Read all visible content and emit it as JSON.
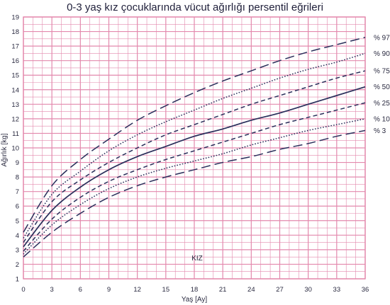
{
  "chart_data": {
    "type": "line",
    "title": "0-3 yaş kız çocuklarında vücut ağırlığı persentil eğrileri",
    "xlabel": "Yaş [Ay]",
    "ylabel": "Ağırlık [kg]",
    "annotation": "KIZ",
    "xlim": [
      0,
      36
    ],
    "ylim": [
      1,
      19
    ],
    "x_ticks": [
      "0",
      "3",
      "6",
      "9",
      "12",
      "15",
      "18",
      "21",
      "24",
      "27",
      "30",
      "33",
      "36"
    ],
    "y_ticks": [
      "1",
      "2",
      "3",
      "4",
      "5",
      "6",
      "7",
      "8",
      "9",
      "10",
      "11",
      "12",
      "13",
      "14",
      "15",
      "16",
      "17",
      "18",
      "19"
    ],
    "grid": true,
    "x": [
      0,
      3,
      6,
      9,
      12,
      15,
      18,
      21,
      24,
      27,
      30,
      33,
      36
    ],
    "series": [
      {
        "name": "% 97",
        "style": "long-dash",
        "values": [
          4.2,
          7.4,
          9.2,
          10.6,
          11.9,
          12.9,
          13.8,
          14.6,
          15.3,
          16.0,
          16.6,
          17.1,
          17.6
        ]
      },
      {
        "name": "% 90",
        "style": "dotted",
        "values": [
          3.8,
          6.8,
          8.4,
          9.8,
          10.9,
          11.8,
          12.6,
          13.4,
          14.1,
          14.8,
          15.4,
          15.9,
          16.5
        ]
      },
      {
        "name": "% 75",
        "style": "dashed",
        "values": [
          3.5,
          6.3,
          7.8,
          9.0,
          10.0,
          10.9,
          11.6,
          12.3,
          13.0,
          13.6,
          14.2,
          14.8,
          15.3
        ]
      },
      {
        "name": "% 50",
        "style": "solid",
        "values": [
          3.2,
          5.7,
          7.3,
          8.5,
          9.4,
          10.1,
          10.8,
          11.3,
          11.9,
          12.4,
          13.0,
          13.6,
          14.2
        ]
      },
      {
        "name": "% 25",
        "style": "dashed",
        "values": [
          2.9,
          5.1,
          6.6,
          7.7,
          8.5,
          9.2,
          9.8,
          10.4,
          11.0,
          11.6,
          12.1,
          12.6,
          13.1
        ]
      },
      {
        "name": "% 10",
        "style": "dotted",
        "values": [
          2.7,
          4.7,
          6.1,
          7.2,
          8.0,
          8.6,
          9.1,
          9.6,
          10.2,
          10.7,
          11.2,
          11.6,
          12.0
        ]
      },
      {
        "name": "% 3",
        "style": "long-dash",
        "values": [
          2.5,
          4.2,
          5.5,
          6.6,
          7.4,
          8.0,
          8.5,
          9.0,
          9.4,
          9.9,
          10.3,
          10.8,
          11.2
        ]
      }
    ],
    "colors": {
      "grid": "#e389ad",
      "curves": "#2a2f5b",
      "text": "#2a2a40"
    }
  }
}
